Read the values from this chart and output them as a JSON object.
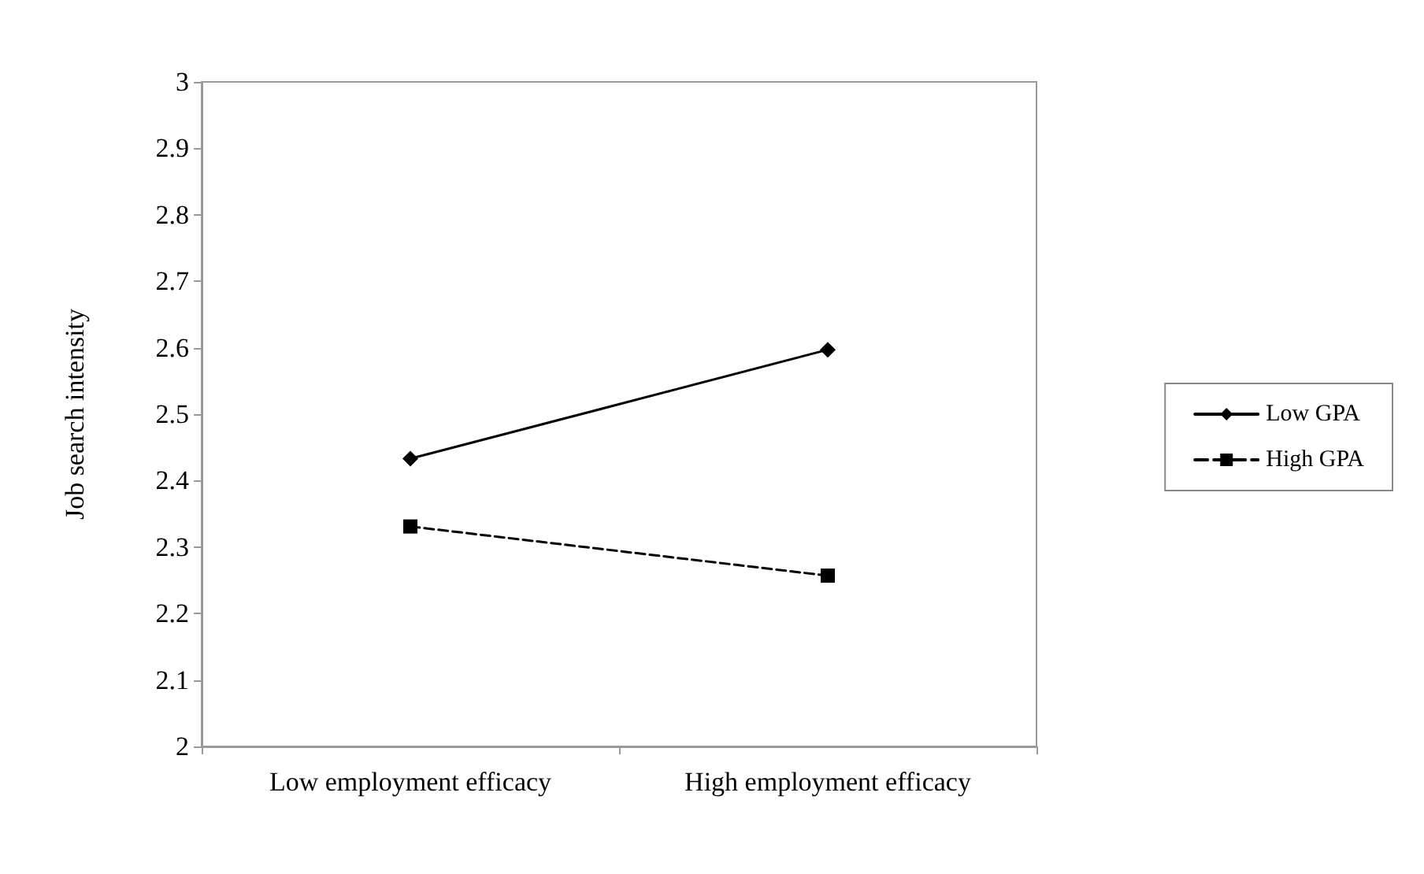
{
  "chart_data": {
    "type": "line",
    "ylabel": "Job search intensity",
    "categories": [
      "Low employment efficacy",
      "High employment efficacy"
    ],
    "series": [
      {
        "name": "Low GPA",
        "color": "#000000",
        "values": [
          2.433,
          2.597
        ],
        "marker": "diamond",
        "line_style": "solid"
      },
      {
        "name": "High GPA",
        "color": "#000000",
        "values": [
          2.331,
          2.257
        ],
        "marker": "square",
        "line_style": "dashed"
      }
    ],
    "ylim": [
      2,
      3
    ],
    "yticks": [
      2,
      2.1,
      2.2,
      2.3,
      2.4,
      2.5,
      2.6,
      2.7,
      2.8,
      2.9,
      3
    ],
    "grid": false,
    "legend": "right"
  }
}
